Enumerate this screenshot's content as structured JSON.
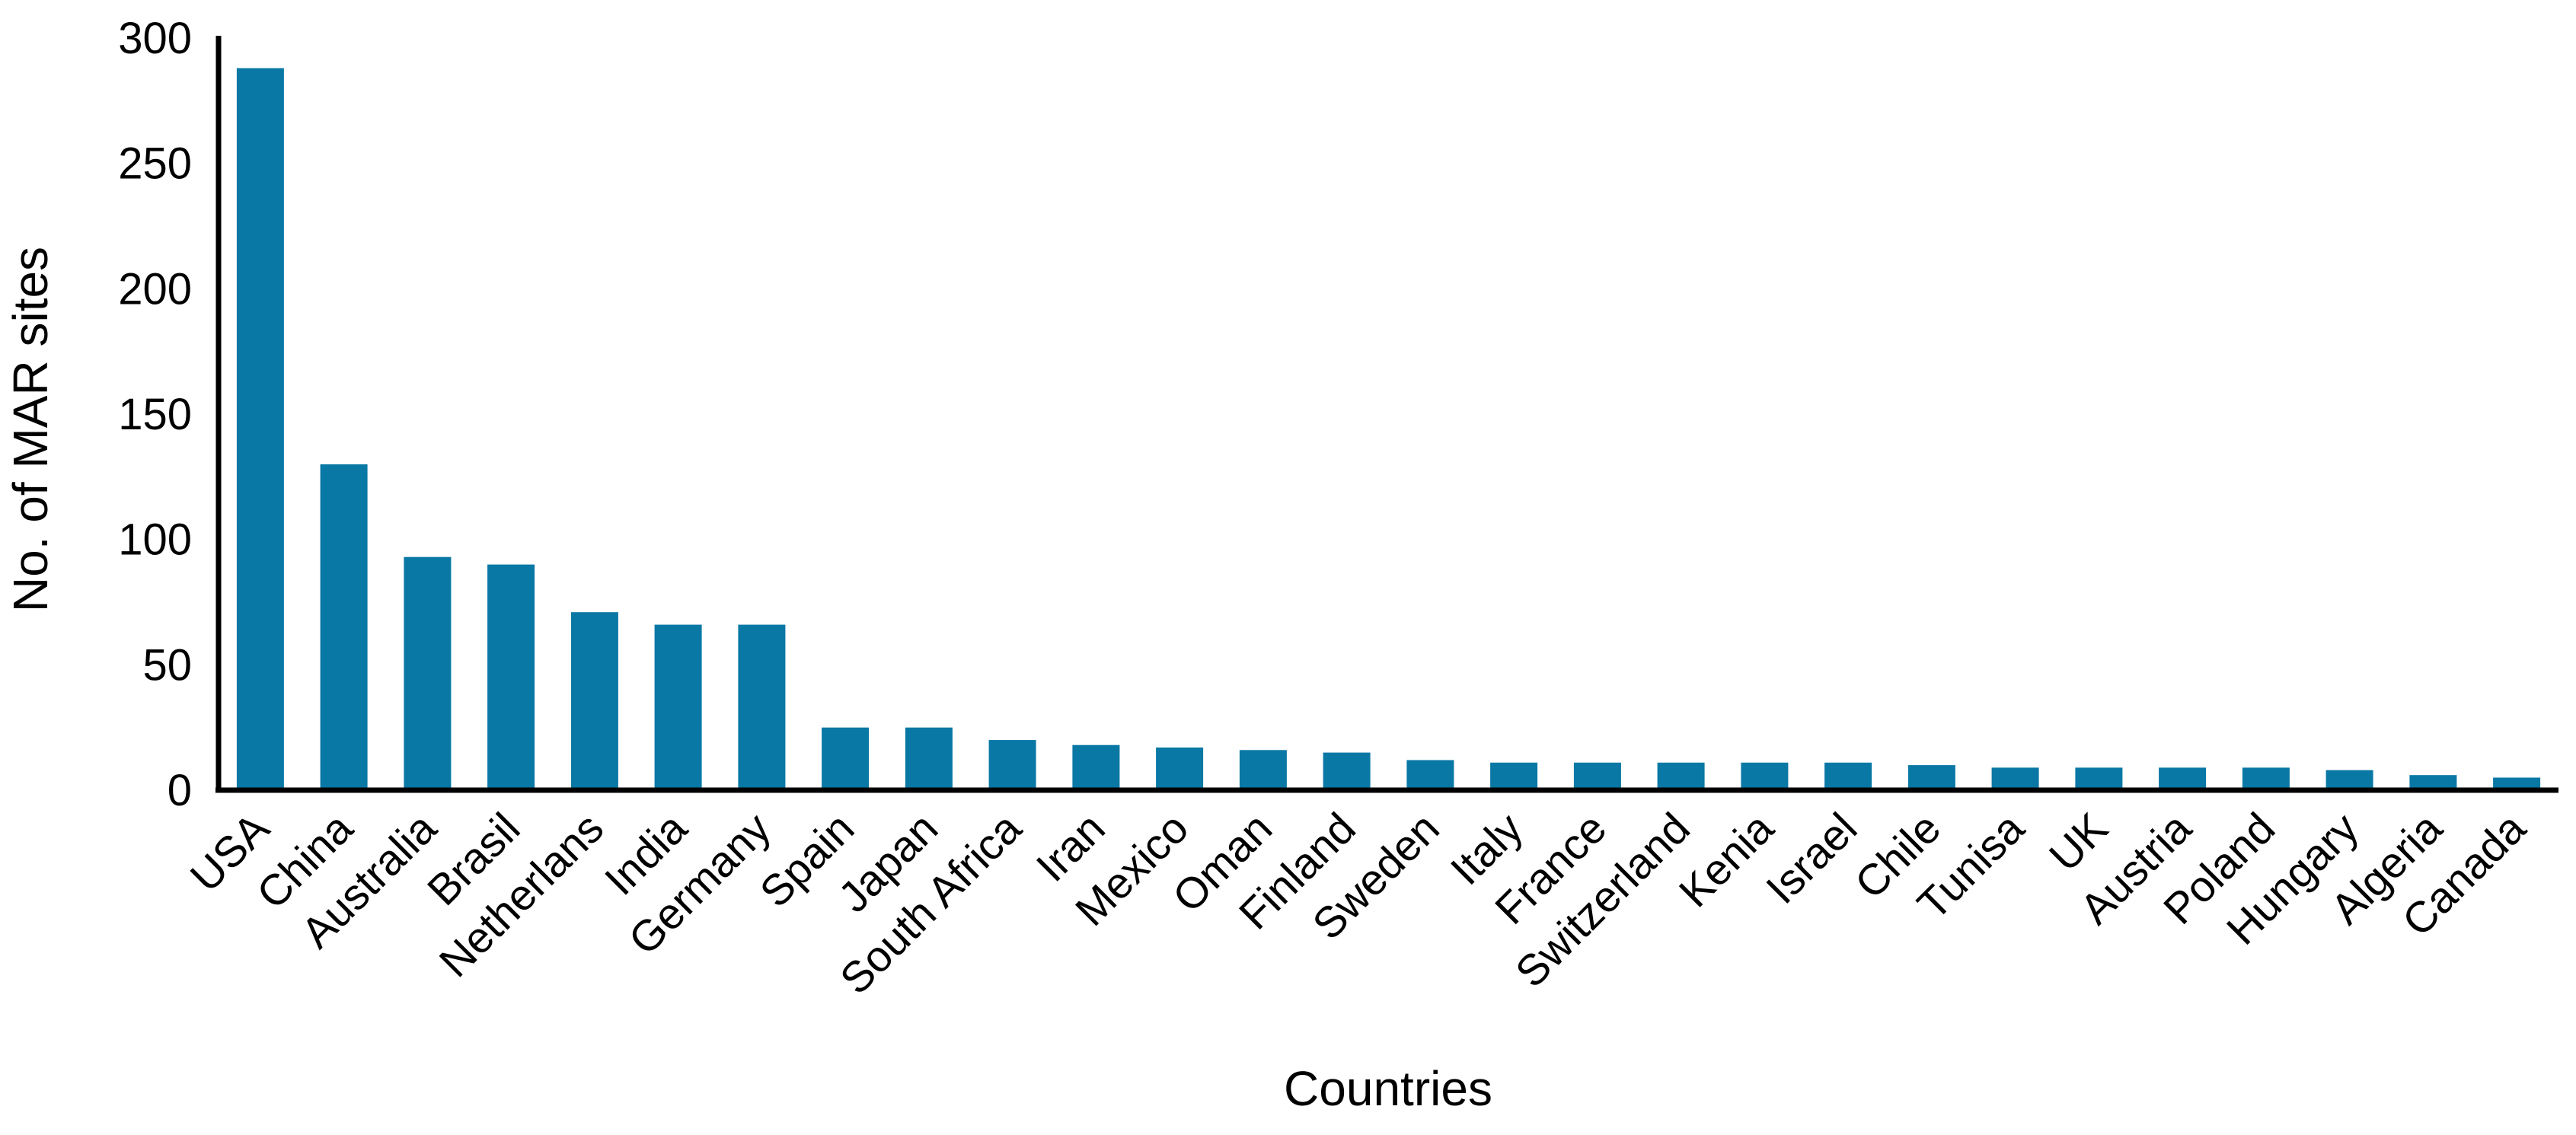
{
  "figure": {
    "background": "#ffffff",
    "bar_color": "#0a78a5",
    "axis_color": "#000000"
  },
  "chart_data": {
    "type": "bar",
    "title": "",
    "xlabel": "Countries",
    "ylabel": "No. of MAR sites",
    "ylim": [
      0,
      300
    ],
    "yticks": [
      0,
      50,
      100,
      150,
      200,
      250,
      300
    ],
    "grid": false,
    "legend_position": "none",
    "categories": [
      "USA",
      "China",
      "Australia",
      "Brasil",
      "Netherlans",
      "India",
      "Germany",
      "Spain",
      "Japan",
      "South Africa",
      "Iran",
      "Mexico",
      "Oman",
      "Finland",
      "Sweden",
      "Italy",
      "France",
      "Switzerland",
      "Kenia",
      "Israel",
      "Chile",
      "Tunisa",
      "UK",
      "Austria",
      "Poland",
      "Hungary",
      "Algeria",
      "Canada"
    ],
    "values": [
      288,
      130,
      93,
      90,
      71,
      66,
      66,
      25,
      25,
      20,
      18,
      17,
      16,
      15,
      12,
      11,
      11,
      11,
      11,
      11,
      10,
      9,
      9,
      9,
      9,
      8,
      6,
      5
    ]
  }
}
